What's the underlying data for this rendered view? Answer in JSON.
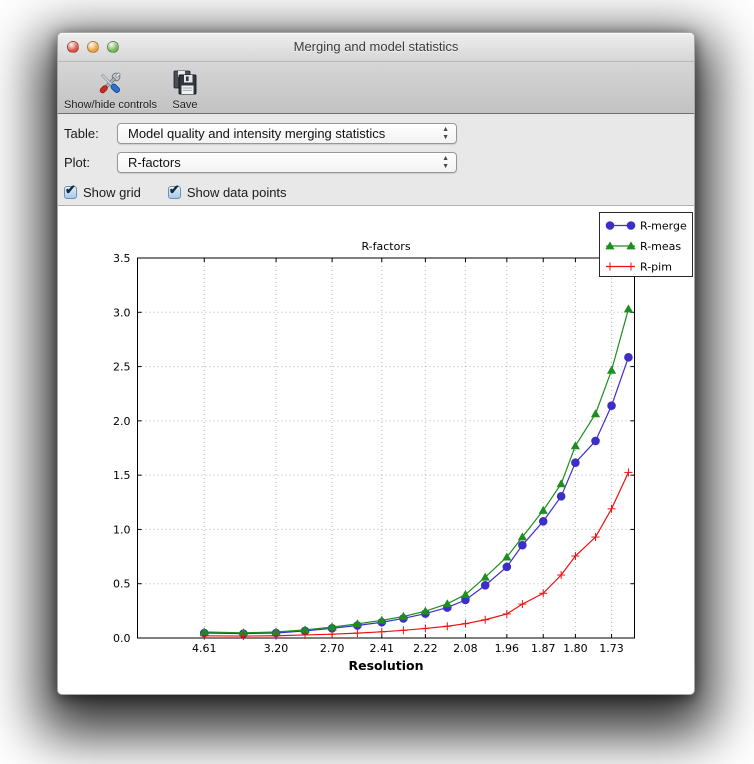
{
  "window": {
    "title": "Merging and model statistics",
    "traffic_lights": [
      "#dd5144",
      "#eda33e",
      "#78b75a"
    ]
  },
  "toolbar": {
    "items": [
      {
        "label": "Show/hide controls",
        "icon": "tools-icon"
      },
      {
        "label": "Save",
        "icon": "save-icon"
      }
    ]
  },
  "controls": {
    "table_label": "Table:",
    "table_value": "Model quality and intensity merging statistics",
    "plot_label": "Plot:",
    "plot_value": "R-factors",
    "checkboxes": [
      {
        "label": "Show grid",
        "checked": true
      },
      {
        "label": "Show data points",
        "checked": true
      }
    ]
  },
  "chart_data": {
    "type": "line",
    "title": "R-factors",
    "xlabel": "Resolution",
    "ylabel": "",
    "x_axis_transform": "1/d^2",
    "grid": true,
    "show_data_points": true,
    "legend_position": "upper right",
    "ylim": [
      0,
      3.5
    ],
    "y_tick_step": 0.5,
    "resolution_bins": [
      4.61,
      3.66,
      3.2,
      2.91,
      2.7,
      2.54,
      2.41,
      2.31,
      2.22,
      2.14,
      2.08,
      2.02,
      1.96,
      1.92,
      1.87,
      1.83,
      1.8,
      1.76,
      1.73,
      1.7
    ],
    "x_tick_labels": [
      "4.61",
      "3.20",
      "2.70",
      "2.41",
      "2.22",
      "2.08",
      "1.96",
      "1.87",
      "1.80",
      "1.73"
    ],
    "series": [
      {
        "name": "R-merge",
        "color": "#3d2ec9",
        "marker": "circle",
        "values": [
          0.046,
          0.04,
          0.046,
          0.065,
          0.089,
          0.115,
          0.145,
          0.18,
          0.225,
          0.28,
          0.35,
          0.485,
          0.655,
          0.855,
          1.075,
          1.305,
          1.615,
          1.815,
          2.14,
          2.585
        ]
      },
      {
        "name": "R-meas",
        "color": "#1d8f1d",
        "marker": "triangle",
        "values": [
          0.055,
          0.048,
          0.055,
          0.075,
          0.1,
          0.13,
          0.163,
          0.198,
          0.247,
          0.315,
          0.4,
          0.56,
          0.745,
          0.93,
          1.175,
          1.42,
          1.77,
          2.065,
          2.465,
          3.03
        ]
      },
      {
        "name": "R-pim",
        "color": "#ee1111",
        "marker": "plus",
        "values": [
          0.02,
          0.018,
          0.021,
          0.028,
          0.035,
          0.045,
          0.057,
          0.071,
          0.088,
          0.108,
          0.132,
          0.168,
          0.222,
          0.312,
          0.412,
          0.58,
          0.755,
          0.93,
          1.19,
          1.525
        ]
      }
    ]
  }
}
